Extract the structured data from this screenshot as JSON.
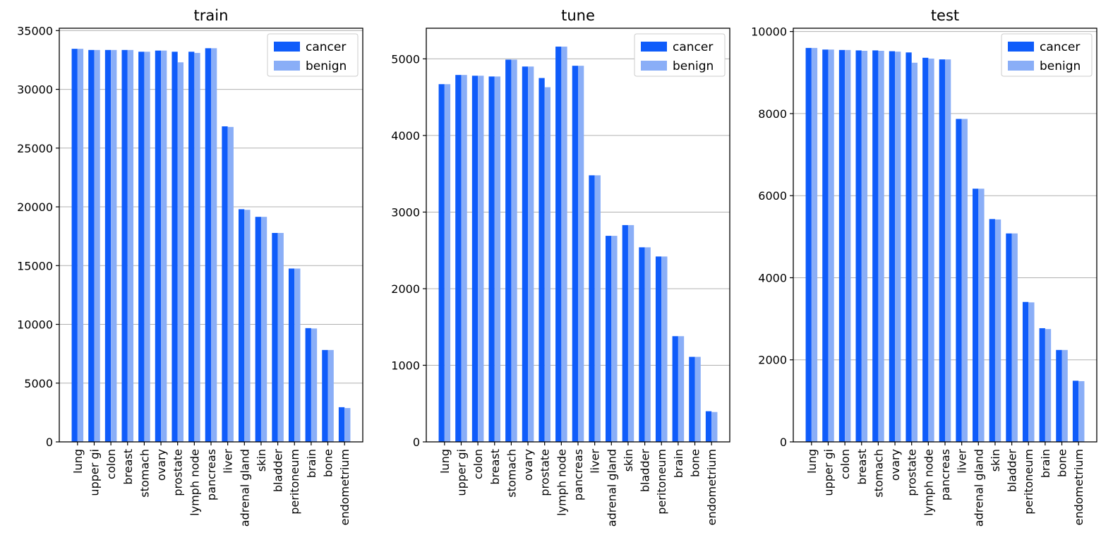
{
  "colors": {
    "cancer": "#0f5cfa",
    "benign": "#8aaef7"
  },
  "chart_data": [
    {
      "type": "bar",
      "title": "train",
      "xlabel": "",
      "ylabel": "",
      "grid": "y",
      "legend": "top-right",
      "ylim": [
        0,
        35200
      ],
      "yticks": [
        0,
        5000,
        10000,
        15000,
        20000,
        25000,
        30000,
        35000
      ],
      "categories": [
        "lung",
        "upper gi",
        "colon",
        "breast",
        "stomach",
        "ovary",
        "prostate",
        "lymph node",
        "pancreas",
        "liver",
        "adrenal gland",
        "skin",
        "bladder",
        "peritoneum",
        "brain",
        "bone",
        "endometrium"
      ],
      "series": [
        {
          "name": "cancer",
          "values": [
            33450,
            33350,
            33350,
            33350,
            33200,
            33300,
            33200,
            33200,
            33500,
            26850,
            19800,
            19150,
            17780,
            14750,
            9680,
            7820,
            2950
          ]
        },
        {
          "name": "benign",
          "values": [
            33450,
            33350,
            33350,
            33350,
            33200,
            33300,
            32300,
            33100,
            33500,
            26800,
            19750,
            19150,
            17780,
            14750,
            9650,
            7820,
            2880
          ]
        }
      ]
    },
    {
      "type": "bar",
      "title": "tune",
      "xlabel": "",
      "ylabel": "",
      "grid": "y",
      "legend": "top-right",
      "ylim": [
        0,
        5400
      ],
      "yticks": [
        0,
        1000,
        2000,
        3000,
        4000,
        5000
      ],
      "categories": [
        "lung",
        "upper gi",
        "colon",
        "breast",
        "stomach",
        "ovary",
        "prostate",
        "lymph node",
        "pancreas",
        "liver",
        "adrenal gland",
        "skin",
        "bladder",
        "peritoneum",
        "brain",
        "bone",
        "endometrium"
      ],
      "series": [
        {
          "name": "cancer",
          "values": [
            4670,
            4790,
            4780,
            4770,
            4990,
            4900,
            4750,
            5160,
            4910,
            3480,
            2690,
            2830,
            2540,
            2420,
            1380,
            1110,
            400
          ]
        },
        {
          "name": "benign",
          "values": [
            4670,
            4790,
            4780,
            4770,
            4990,
            4900,
            4630,
            5160,
            4910,
            3480,
            2690,
            2830,
            2540,
            2420,
            1380,
            1110,
            390
          ]
        }
      ]
    },
    {
      "type": "bar",
      "title": "test",
      "xlabel": "",
      "ylabel": "",
      "grid": "y",
      "legend": "top-right",
      "ylim": [
        0,
        10080
      ],
      "yticks": [
        0,
        2000,
        4000,
        6000,
        8000,
        10000
      ],
      "categories": [
        "lung",
        "upper gi",
        "colon",
        "breast",
        "stomach",
        "ovary",
        "prostate",
        "lymph node",
        "pancreas",
        "liver",
        "adrenal gland",
        "skin",
        "bladder",
        "peritoneum",
        "brain",
        "bone",
        "endometrium"
      ],
      "series": [
        {
          "name": "cancer",
          "values": [
            9600,
            9560,
            9550,
            9540,
            9540,
            9520,
            9490,
            9360,
            9320,
            7870,
            6170,
            5430,
            5080,
            3410,
            2770,
            2240,
            1490
          ]
        },
        {
          "name": "benign",
          "values": [
            9600,
            9560,
            9550,
            9530,
            9530,
            9510,
            9240,
            9340,
            9320,
            7870,
            6170,
            5420,
            5080,
            3400,
            2750,
            2240,
            1480
          ]
        }
      ]
    }
  ]
}
